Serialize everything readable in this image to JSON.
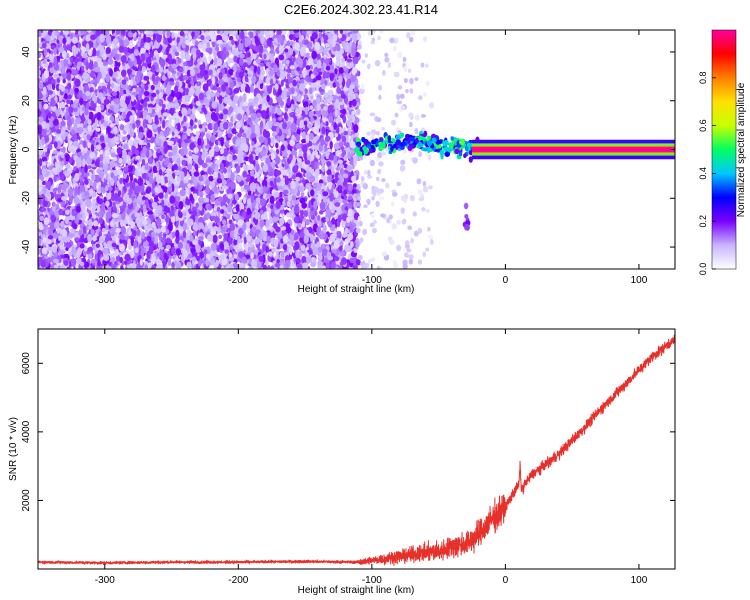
{
  "title": "C2E6.2024.302.23.41.R14",
  "chart_data": [
    {
      "type": "heatmap",
      "xlabel": "Height of straight line (km)",
      "ylabel": "Frequency (Hz)",
      "xlim": [
        -350,
        127
      ],
      "ylim": [
        -49,
        49
      ],
      "xticks": [
        -300,
        -200,
        -100,
        0,
        100
      ],
      "yticks": [
        -40,
        -20,
        0,
        20,
        40
      ],
      "colorbar": {
        "label": "Normalized spectral amplitude",
        "range": [
          0,
          1
        ],
        "ticks": [
          0.0,
          0.2,
          0.4,
          0.6,
          0.8
        ],
        "colors": [
          "#ffffff",
          "#c8b4ff",
          "#7a00ff",
          "#0000ff",
          "#00c8ff",
          "#00ff60",
          "#c8ff00",
          "#ffe000",
          "#ff8000",
          "#ff0000",
          "#ff00a0"
        ]
      },
      "regions": [
        {
          "name": "noise",
          "x": [
            -350,
            -110
          ],
          "freq": [
            -49,
            49
          ],
          "amplitude": [
            0.05,
            0.2
          ]
        },
        {
          "name": "sparse-noise",
          "x": [
            -110,
            -55
          ],
          "freq": [
            -49,
            49
          ],
          "amplitude": [
            0.02,
            0.1
          ]
        },
        {
          "name": "signal-onset",
          "x": [
            -112,
            -20
          ],
          "freq": [
            -4,
            7
          ],
          "amplitude": [
            0.2,
            0.55
          ]
        },
        {
          "name": "signal-trail",
          "x": [
            -30,
            -28
          ],
          "freq": [
            -32,
            -22
          ],
          "amplitude": [
            0.1,
            0.2
          ]
        },
        {
          "name": "tone",
          "x": [
            -25,
            127
          ],
          "freq": [
            -1,
            1
          ],
          "amplitude": [
            0.6,
            1.0
          ]
        }
      ]
    },
    {
      "type": "line",
      "xlabel": "Height of straight line (km)",
      "ylabel": "SNR (10 * v/v)",
      "xlim": [
        -350,
        127
      ],
      "ylim": [
        0,
        7000
      ],
      "xticks": [
        -300,
        -200,
        -100,
        0,
        100
      ],
      "yticks": [
        2000,
        4000,
        6000
      ],
      "series": [
        {
          "color": "#e8302a",
          "x": [
            -350,
            -300,
            -250,
            -200,
            -150,
            -110,
            -90,
            -70,
            -50,
            -40,
            -30,
            -20,
            -10,
            0,
            5,
            10,
            11,
            12,
            15,
            20,
            30,
            40,
            50,
            60,
            70,
            80,
            90,
            100,
            110,
            120,
            127
          ],
          "y": [
            200,
            180,
            200,
            200,
            220,
            200,
            300,
            420,
            520,
            640,
            750,
            1000,
            1450,
            1800,
            2150,
            2450,
            3000,
            2300,
            2500,
            2750,
            3050,
            3350,
            3750,
            4150,
            4600,
            5000,
            5400,
            5800,
            6200,
            6500,
            6700
          ]
        }
      ]
    }
  ]
}
